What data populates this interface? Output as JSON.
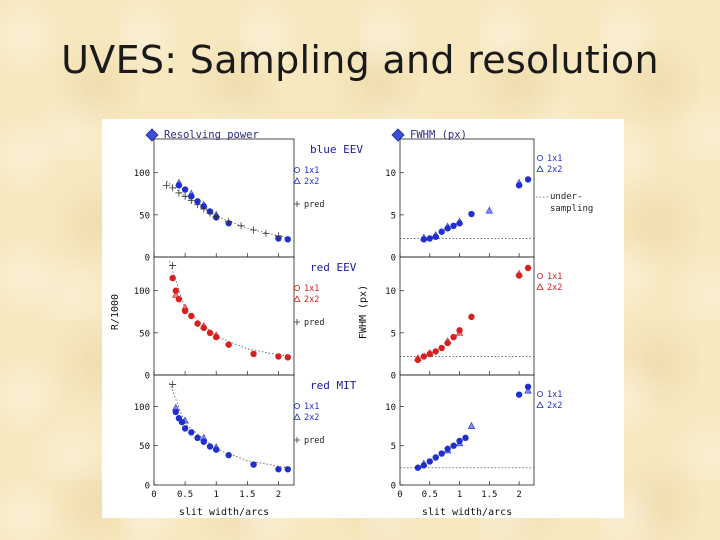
{
  "slide": {
    "title": "UVES: Sampling and resolution"
  },
  "chart_data": {
    "type": "scatter",
    "colors": {
      "blue": "#1f2fd0",
      "red": "#d82020",
      "pred": "#333333"
    },
    "left_column": {
      "header": "Resolving power",
      "ylabel": "R/1000",
      "xlabel": "slit width/arcs",
      "xlim": [
        0,
        2.25
      ],
      "x_ticks": [
        "0",
        "0.5",
        "1",
        "1.5",
        "2"
      ],
      "ylim": [
        0,
        140
      ],
      "y_ticks": [
        "0",
        "50",
        "100"
      ],
      "panels": [
        {
          "label": "blue EEV",
          "legend": [
            "1x1",
            "2x2",
            "pred"
          ],
          "series": [
            {
              "name": "1x1",
              "color": "blue",
              "marker": "dot",
              "points": [
                [
                  0.4,
                  85
                ],
                [
                  0.5,
                  80
                ],
                [
                  0.6,
                  72
                ],
                [
                  0.7,
                  66
                ],
                [
                  0.8,
                  60
                ],
                [
                  0.9,
                  54
                ],
                [
                  1.0,
                  47
                ],
                [
                  1.2,
                  40
                ],
                [
                  2.0,
                  22
                ],
                [
                  2.15,
                  21
                ]
              ]
            },
            {
              "name": "2x2",
              "color": "blue",
              "marker": "triangle",
              "points": [
                [
                  0.4,
                  88
                ],
                [
                  0.6,
                  75
                ],
                [
                  0.8,
                  62
                ],
                [
                  1.0,
                  50
                ]
              ]
            },
            {
              "name": "pred",
              "color": "pred",
              "marker": "plus",
              "points": [
                [
                  0.2,
                  85
                ],
                [
                  0.3,
                  82
                ],
                [
                  0.4,
                  76
                ],
                [
                  0.5,
                  72
                ],
                [
                  0.6,
                  67
                ],
                [
                  0.7,
                  62
                ],
                [
                  0.8,
                  57
                ],
                [
                  0.9,
                  52
                ],
                [
                  1.0,
                  48
                ],
                [
                  1.2,
                  42
                ],
                [
                  1.4,
                  37
                ],
                [
                  1.6,
                  32
                ],
                [
                  1.8,
                  28
                ],
                [
                  2.0,
                  25
                ]
              ]
            }
          ],
          "pred_curve": [
            [
              0.2,
              90
            ],
            [
              0.5,
              72
            ],
            [
              1.0,
              48
            ],
            [
              1.5,
              34
            ],
            [
              2.0,
              25
            ],
            [
              2.2,
              22
            ]
          ]
        },
        {
          "label": "red EEV",
          "legend": [
            "1x1",
            "2x2",
            "pred"
          ],
          "series": [
            {
              "name": "1x1",
              "color": "red",
              "marker": "dot",
              "points": [
                [
                  0.3,
                  115
                ],
                [
                  0.35,
                  100
                ],
                [
                  0.4,
                  90
                ],
                [
                  0.5,
                  76
                ],
                [
                  0.6,
                  70
                ],
                [
                  0.7,
                  61
                ],
                [
                  0.8,
                  56
                ],
                [
                  0.9,
                  50
                ],
                [
                  1.0,
                  45
                ],
                [
                  1.2,
                  36
                ],
                [
                  1.6,
                  25
                ],
                [
                  2.0,
                  22
                ],
                [
                  2.15,
                  21
                ]
              ]
            },
            {
              "name": "2x2",
              "color": "red",
              "marker": "triangle",
              "points": [
                [
                  0.35,
                  95
                ],
                [
                  0.5,
                  80
                ],
                [
                  0.8,
                  58
                ],
                [
                  1.0,
                  47
                ]
              ]
            },
            {
              "name": "pred",
              "color": "pred",
              "marker": "plus",
              "points": [
                [
                  0.3,
                  130
                ]
              ]
            }
          ],
          "pred_curve": [
            [
              0.25,
              135
            ],
            [
              0.5,
              78
            ],
            [
              1.0,
              46
            ],
            [
              1.5,
              31
            ],
            [
              2.0,
              24
            ],
            [
              2.2,
              22
            ]
          ]
        },
        {
          "label": "red MIT",
          "legend": [
            "1x1",
            "2x2",
            "pred"
          ],
          "series": [
            {
              "name": "1x1",
              "color": "blue",
              "marker": "dot",
              "points": [
                [
                  0.35,
                  93
                ],
                [
                  0.4,
                  85
                ],
                [
                  0.45,
                  80
                ],
                [
                  0.5,
                  72
                ],
                [
                  0.6,
                  67
                ],
                [
                  0.7,
                  60
                ],
                [
                  0.8,
                  55
                ],
                [
                  0.9,
                  49
                ],
                [
                  1.0,
                  45
                ],
                [
                  1.2,
                  38
                ],
                [
                  1.6,
                  26
                ],
                [
                  2.0,
                  20
                ],
                [
                  2.15,
                  20
                ]
              ]
            },
            {
              "name": "2x2",
              "color": "blue",
              "marker": "triangle",
              "points": [
                [
                  0.35,
                  98
                ],
                [
                  0.5,
                  82
                ],
                [
                  0.8,
                  60
                ],
                [
                  1.0,
                  48
                ]
              ]
            },
            {
              "name": "pred",
              "color": "pred",
              "marker": "plus",
              "points": [
                [
                  0.3,
                  128
                ]
              ]
            }
          ],
          "pred_curve": [
            [
              0.25,
              130
            ],
            [
              0.5,
              78
            ],
            [
              1.0,
              46
            ],
            [
              1.5,
              31
            ],
            [
              2.0,
              24
            ],
            [
              2.2,
              21
            ]
          ]
        }
      ]
    },
    "right_column": {
      "header": "FWHM (px)",
      "ylabel": "FWHM (px)",
      "xlabel": "slit width/arcs",
      "xlim": [
        0,
        2.25
      ],
      "x_ticks": [
        "0",
        "0.5",
        "1",
        "1.5",
        "2"
      ],
      "ylim": [
        0,
        14
      ],
      "y_ticks": [
        "0",
        "5",
        "10"
      ],
      "undersampling_level": 2.2,
      "undersampling_label": [
        "under-",
        "sampling"
      ],
      "panels": [
        {
          "legend": [
            "1x1",
            "2x2"
          ],
          "series": [
            {
              "name": "1x1",
              "color": "blue",
              "marker": "dot",
              "points": [
                [
                  0.4,
                  2.1
                ],
                [
                  0.5,
                  2.2
                ],
                [
                  0.6,
                  2.4
                ],
                [
                  0.7,
                  3.0
                ],
                [
                  0.8,
                  3.4
                ],
                [
                  0.9,
                  3.7
                ],
                [
                  1.0,
                  4.0
                ],
                [
                  1.2,
                  5.1
                ],
                [
                  2.0,
                  8.5
                ],
                [
                  2.15,
                  9.2
                ]
              ]
            },
            {
              "name": "2x2",
              "color": "blue",
              "marker": "triangle",
              "points": [
                [
                  0.4,
                  2.3
                ],
                [
                  0.6,
                  2.6
                ],
                [
                  0.8,
                  3.6
                ],
                [
                  1.0,
                  4.2
                ],
                [
                  1.5,
                  5.5
                ],
                [
                  2.0,
                  8.8
                ]
              ]
            }
          ]
        },
        {
          "legend": [
            "1x1",
            "2x2"
          ],
          "series": [
            {
              "name": "1x1",
              "color": "red",
              "marker": "dot",
              "points": [
                [
                  0.3,
                  1.8
                ],
                [
                  0.4,
                  2.2
                ],
                [
                  0.5,
                  2.5
                ],
                [
                  0.6,
                  2.8
                ],
                [
                  0.7,
                  3.2
                ],
                [
                  0.8,
                  3.8
                ],
                [
                  0.9,
                  4.5
                ],
                [
                  1.0,
                  5.3
                ],
                [
                  1.2,
                  6.9
                ],
                [
                  2.0,
                  11.8
                ],
                [
                  2.15,
                  12.7
                ]
              ]
            },
            {
              "name": "2x2",
              "color": "red",
              "marker": "triangle",
              "points": [
                [
                  0.3,
                  2.0
                ],
                [
                  0.5,
                  2.6
                ],
                [
                  0.8,
                  4.0
                ],
                [
                  1.0,
                  5.0
                ],
                [
                  2.0,
                  12.0
                ]
              ]
            }
          ]
        },
        {
          "legend": [
            "1x1",
            "2x2"
          ],
          "series": [
            {
              "name": "1x1",
              "color": "blue",
              "marker": "dot",
              "points": [
                [
                  0.3,
                  2.2
                ],
                [
                  0.4,
                  2.5
                ],
                [
                  0.5,
                  3.0
                ],
                [
                  0.6,
                  3.5
                ],
                [
                  0.7,
                  4.0
                ],
                [
                  0.8,
                  4.6
                ],
                [
                  0.9,
                  5.0
                ],
                [
                  1.0,
                  5.6
                ],
                [
                  1.1,
                  6.0
                ],
                [
                  2.0,
                  11.5
                ],
                [
                  2.15,
                  12.5
                ]
              ]
            },
            {
              "name": "2x2",
              "color": "blue",
              "marker": "triangle",
              "points": [
                [
                  0.4,
                  2.7
                ],
                [
                  0.8,
                  4.4
                ],
                [
                  1.0,
                  5.3
                ],
                [
                  1.2,
                  7.5
                ],
                [
                  2.15,
                  12.0
                ]
              ]
            }
          ]
        }
      ]
    }
  }
}
